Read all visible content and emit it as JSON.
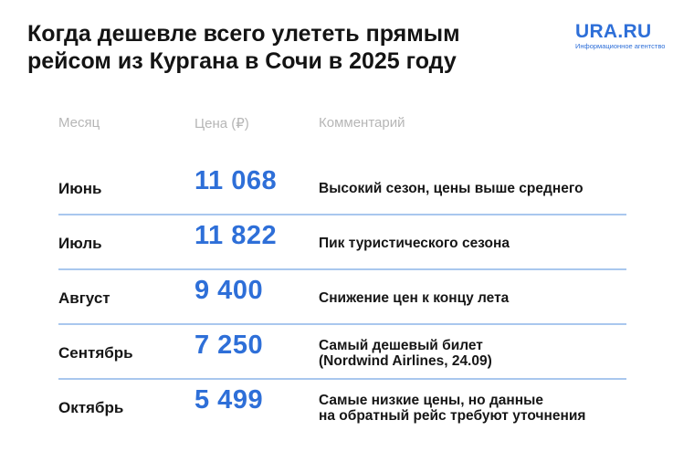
{
  "title": {
    "line1": "Когда дешевле всего улететь прямым",
    "line2": "рейсом из Кургана в Сочи в 2025 году"
  },
  "logo": {
    "name": "URA.RU",
    "tagline": "Информационное агентство"
  },
  "table": {
    "headers": {
      "month": "Месяц",
      "price": "Цена (₽)",
      "comment": "Комментарий"
    },
    "rows": [
      {
        "month": "Июнь",
        "price": "11 068",
        "comment": "Высокий сезон, цены выше среднего"
      },
      {
        "month": "Июль",
        "price": "11 822",
        "comment": "Пик туристического сезона"
      },
      {
        "month": "Август",
        "price": "9 400",
        "comment": "Снижение цен к концу лета"
      },
      {
        "month": "Сентябрь",
        "price": "7 250",
        "comment": "Самый дешевый билет\n(Nordwind Airlines, 24.09)"
      },
      {
        "month": "Октябрь",
        "price": "5 499",
        "comment": "Самые низкие цены, но данные\nна обратный рейс требуют уточнения"
      }
    ]
  },
  "colors": {
    "accent": "#2e6fd8",
    "divider": "#a9c7ee",
    "header_text": "#b6b6b6",
    "text": "#161616"
  }
}
